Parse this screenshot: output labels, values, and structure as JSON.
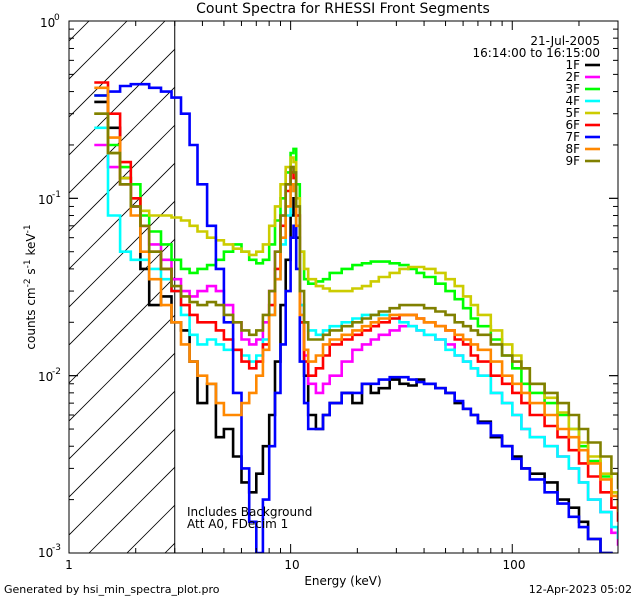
{
  "footer": {
    "generated_by": "Generated by hsi_min_spectra_plot.pro",
    "timestamp": "12-Apr-2023 05:02"
  },
  "chart_data": {
    "type": "line",
    "title": "Count Spectra for RHESSI Front Segments",
    "xlabel": "Energy (keV)",
    "ylabel_parts": [
      "counts cm",
      "-2",
      " s",
      "-1",
      " keV",
      "-1"
    ],
    "x_scale": "log",
    "y_scale": "log",
    "xlim": [
      1,
      300
    ],
    "ylim": [
      0.001,
      1
    ],
    "x_ticks": [
      {
        "value": 1,
        "label": "1"
      },
      {
        "value": 10,
        "label": "10"
      },
      {
        "value": 100,
        "label": "100"
      }
    ],
    "y_ticks": [
      {
        "value": 0.001,
        "base": "10",
        "exp": "-3"
      },
      {
        "value": 0.01,
        "base": "10",
        "exp": "-2"
      },
      {
        "value": 0.1,
        "base": "10",
        "exp": "-1"
      },
      {
        "value": 1,
        "base": "10",
        "exp": "0"
      }
    ],
    "date": "21-Jul-2005",
    "time_range": "16:14:00 to 16:15:00",
    "annotation_lines": [
      "Includes Background",
      "Att A0, FDecim 1"
    ],
    "hatched_region_max_keV": 3,
    "series": [
      {
        "name": "1F",
        "color": "#000000",
        "x": [
          1.3,
          1.5,
          1.7,
          1.9,
          2.1,
          2.3,
          2.6,
          2.9,
          3.2,
          3.5,
          3.8,
          4.2,
          4.6,
          5.0,
          5.5,
          6.0,
          6.5,
          7.0,
          7.5,
          8.0,
          8.5,
          9.0,
          9.5,
          10.0,
          10.3,
          10.6,
          11.0,
          11.5,
          12,
          13,
          14,
          15,
          17,
          19,
          21,
          23,
          25,
          28,
          31,
          34,
          37,
          40,
          45,
          50,
          55,
          60,
          65,
          70,
          80,
          90,
          100,
          110,
          120,
          140,
          160,
          180,
          200,
          220,
          250,
          280,
          300
        ],
        "y": [
          0.35,
          0.25,
          0.13,
          0.09,
          0.04,
          0.025,
          0.028,
          0.02,
          0.018,
          0.012,
          0.007,
          0.009,
          0.0045,
          0.005,
          0.0035,
          0.0025,
          0.0022,
          0.0028,
          0.004,
          0.006,
          0.012,
          0.025,
          0.045,
          0.08,
          0.1,
          0.06,
          0.02,
          0.01,
          0.006,
          0.005,
          0.006,
          0.007,
          0.008,
          0.007,
          0.009,
          0.008,
          0.0085,
          0.0095,
          0.009,
          0.0088,
          0.0095,
          0.009,
          0.0085,
          0.008,
          0.007,
          0.0065,
          0.006,
          0.0055,
          0.0045,
          0.004,
          0.0035,
          0.003,
          0.0028,
          0.0025,
          0.002,
          0.0018,
          0.0015,
          0.0012,
          0.001,
          0.0009,
          0.0008
        ]
      },
      {
        "name": "2F",
        "color": "#ff00ff",
        "x": [
          1.3,
          1.5,
          1.7,
          1.9,
          2.1,
          2.3,
          2.6,
          2.9,
          3.2,
          3.5,
          3.8,
          4.2,
          4.6,
          5.0,
          5.5,
          6.0,
          6.5,
          7.0,
          7.5,
          8.0,
          8.5,
          9.0,
          9.5,
          10.0,
          10.3,
          10.6,
          11.0,
          11.5,
          12,
          13,
          14,
          15,
          17,
          19,
          21,
          23,
          25,
          28,
          31,
          34,
          37,
          40,
          45,
          50,
          55,
          60,
          65,
          70,
          80,
          90,
          100,
          110,
          120,
          140,
          160,
          180,
          200,
          220,
          250,
          280,
          300
        ],
        "y": [
          0.2,
          0.15,
          0.12,
          0.09,
          0.07,
          0.055,
          0.045,
          0.035,
          0.03,
          0.028,
          0.03,
          0.032,
          0.03,
          0.025,
          0.02,
          0.016,
          0.015,
          0.016,
          0.02,
          0.03,
          0.05,
          0.08,
          0.12,
          0.15,
          0.14,
          0.08,
          0.025,
          0.013,
          0.009,
          0.008,
          0.009,
          0.01,
          0.012,
          0.014,
          0.015,
          0.016,
          0.017,
          0.018,
          0.019,
          0.019,
          0.018,
          0.017,
          0.016,
          0.015,
          0.013,
          0.012,
          0.011,
          0.01,
          0.008,
          0.007,
          0.006,
          0.005,
          0.0045,
          0.004,
          0.0035,
          0.003,
          0.0025,
          0.002,
          0.0017,
          0.0013,
          0.0011
        ]
      },
      {
        "name": "3F",
        "color": "#00ff00",
        "x": [
          1.3,
          1.5,
          1.7,
          1.9,
          2.1,
          2.3,
          2.6,
          2.9,
          3.2,
          3.5,
          3.8,
          4.2,
          4.6,
          5.0,
          5.5,
          6.0,
          6.5,
          7.0,
          7.5,
          8.0,
          8.5,
          9.0,
          9.5,
          10.0,
          10.3,
          10.6,
          11.0,
          11.5,
          12,
          13,
          14,
          15,
          17,
          19,
          21,
          23,
          25,
          28,
          31,
          34,
          37,
          40,
          45,
          50,
          55,
          60,
          65,
          70,
          80,
          90,
          100,
          110,
          120,
          140,
          160,
          180,
          200,
          220,
          250,
          280,
          300
        ],
        "y": [
          0.38,
          0.2,
          0.15,
          0.12,
          0.08,
          0.065,
          0.055,
          0.045,
          0.04,
          0.038,
          0.04,
          0.042,
          0.045,
          0.05,
          0.055,
          0.05,
          0.045,
          0.043,
          0.045,
          0.055,
          0.075,
          0.1,
          0.14,
          0.18,
          0.19,
          0.12,
          0.05,
          0.035,
          0.033,
          0.034,
          0.035,
          0.038,
          0.04,
          0.042,
          0.043,
          0.044,
          0.044,
          0.043,
          0.042,
          0.04,
          0.038,
          0.036,
          0.033,
          0.03,
          0.027,
          0.024,
          0.021,
          0.019,
          0.016,
          0.013,
          0.011,
          0.009,
          0.008,
          0.007,
          0.006,
          0.005,
          0.004,
          0.0033,
          0.0027,
          0.0022,
          0.0018
        ]
      },
      {
        "name": "4F",
        "color": "#00ffff",
        "x": [
          1.3,
          1.5,
          1.7,
          1.9,
          2.1,
          2.3,
          2.6,
          2.9,
          3.2,
          3.5,
          3.8,
          4.2,
          4.6,
          5.0,
          5.5,
          6.0,
          6.5,
          7.0,
          7.5,
          8.0,
          8.5,
          9.0,
          9.5,
          10.0,
          10.3,
          10.6,
          11.0,
          11.5,
          12,
          13,
          14,
          15,
          17,
          19,
          21,
          23,
          25,
          28,
          31,
          34,
          37,
          40,
          45,
          50,
          55,
          60,
          65,
          70,
          80,
          90,
          100,
          110,
          120,
          140,
          160,
          180,
          200,
          220,
          250,
          280,
          300
        ],
        "y": [
          0.25,
          0.08,
          0.05,
          0.045,
          0.045,
          0.04,
          0.035,
          0.03,
          0.022,
          0.017,
          0.015,
          0.016,
          0.015,
          0.014,
          0.014,
          0.013,
          0.012,
          0.013,
          0.016,
          0.022,
          0.035,
          0.055,
          0.08,
          0.11,
          0.12,
          0.07,
          0.025,
          0.02,
          0.018,
          0.017,
          0.018,
          0.019,
          0.02,
          0.021,
          0.022,
          0.022,
          0.022,
          0.021,
          0.02,
          0.019,
          0.018,
          0.017,
          0.016,
          0.014,
          0.013,
          0.012,
          0.011,
          0.01,
          0.008,
          0.007,
          0.006,
          0.005,
          0.0045,
          0.004,
          0.0035,
          0.003,
          0.0025,
          0.002,
          0.0017,
          0.0014,
          0.0012
        ]
      },
      {
        "name": "5F",
        "color": "#cccc00",
        "x": [
          1.3,
          1.5,
          1.7,
          1.9,
          2.1,
          2.3,
          2.6,
          2.9,
          3.2,
          3.5,
          3.8,
          4.2,
          4.6,
          5.0,
          5.5,
          6.0,
          6.5,
          7.0,
          7.5,
          8.0,
          8.5,
          9.0,
          9.5,
          10.0,
          10.3,
          10.6,
          11.0,
          11.5,
          12,
          13,
          14,
          15,
          17,
          19,
          21,
          23,
          25,
          28,
          31,
          34,
          37,
          40,
          45,
          50,
          55,
          60,
          65,
          70,
          80,
          90,
          100,
          110,
          120,
          140,
          160,
          180,
          200,
          220,
          250,
          280,
          300
        ],
        "y": [
          0.3,
          0.18,
          0.13,
          0.1,
          0.085,
          0.08,
          0.08,
          0.078,
          0.075,
          0.07,
          0.065,
          0.06,
          0.058,
          0.055,
          0.052,
          0.05,
          0.048,
          0.05,
          0.055,
          0.07,
          0.09,
          0.12,
          0.15,
          0.17,
          0.16,
          0.1,
          0.05,
          0.04,
          0.035,
          0.032,
          0.031,
          0.03,
          0.03,
          0.031,
          0.032,
          0.034,
          0.036,
          0.038,
          0.04,
          0.041,
          0.041,
          0.04,
          0.038,
          0.035,
          0.032,
          0.028,
          0.025,
          0.022,
          0.018,
          0.015,
          0.013,
          0.011,
          0.009,
          0.0075,
          0.0062,
          0.005,
          0.0042,
          0.0035,
          0.0028,
          0.0022,
          0.0018
        ]
      },
      {
        "name": "6F",
        "color": "#ff0000",
        "x": [
          1.3,
          1.5,
          1.7,
          1.9,
          2.1,
          2.3,
          2.6,
          2.9,
          3.2,
          3.5,
          3.8,
          4.2,
          4.6,
          5.0,
          5.5,
          6.0,
          6.5,
          7.0,
          7.5,
          8.0,
          8.5,
          9.0,
          9.5,
          10.0,
          10.3,
          10.6,
          11.0,
          11.5,
          12,
          13,
          14,
          15,
          17,
          19,
          21,
          23,
          25,
          28,
          31,
          34,
          37,
          40,
          45,
          50,
          55,
          60,
          65,
          70,
          80,
          90,
          100,
          110,
          120,
          140,
          160,
          180,
          200,
          220,
          250,
          280,
          300
        ],
        "y": [
          0.45,
          0.3,
          0.16,
          0.1,
          0.07,
          0.05,
          0.04,
          0.03,
          0.025,
          0.022,
          0.02,
          0.02,
          0.018,
          0.016,
          0.014,
          0.012,
          0.011,
          0.012,
          0.015,
          0.025,
          0.04,
          0.07,
          0.11,
          0.14,
          0.13,
          0.08,
          0.02,
          0.012,
          0.01,
          0.011,
          0.013,
          0.015,
          0.016,
          0.017,
          0.018,
          0.019,
          0.02,
          0.021,
          0.022,
          0.022,
          0.021,
          0.02,
          0.019,
          0.018,
          0.016,
          0.015,
          0.013,
          0.012,
          0.01,
          0.009,
          0.008,
          0.007,
          0.006,
          0.0052,
          0.0045,
          0.0038,
          0.0032,
          0.0027,
          0.0022,
          0.0018,
          0.0015
        ]
      },
      {
        "name": "7F",
        "color": "#0000ff",
        "x": [
          1.3,
          1.5,
          1.7,
          1.9,
          2.1,
          2.3,
          2.6,
          2.9,
          3.2,
          3.5,
          3.8,
          4.2,
          4.6,
          5.0,
          5.5,
          6.0,
          6.5,
          7.0,
          7.5,
          8.0,
          8.5,
          9.0,
          9.5,
          10.0,
          10.3,
          10.6,
          11.0,
          11.5,
          12,
          13,
          14,
          15,
          17,
          19,
          21,
          23,
          25,
          28,
          31,
          34,
          37,
          40,
          45,
          50,
          55,
          60,
          65,
          70,
          80,
          90,
          100,
          110,
          120,
          140,
          160,
          180,
          200,
          220,
          250,
          280,
          300
        ],
        "y": [
          0.38,
          0.4,
          0.43,
          0.44,
          0.44,
          0.42,
          0.4,
          0.37,
          0.3,
          0.2,
          0.12,
          0.07,
          0.04,
          0.02,
          0.008,
          0.003,
          0.0015,
          0.001,
          0.002,
          0.004,
          0.008,
          0.015,
          0.03,
          0.06,
          0.07,
          0.04,
          0.012,
          0.007,
          0.005,
          0.005,
          0.006,
          0.007,
          0.008,
          0.008,
          0.009,
          0.009,
          0.0095,
          0.0098,
          0.0098,
          0.0095,
          0.0092,
          0.009,
          0.0085,
          0.008,
          0.0072,
          0.0065,
          0.006,
          0.0054,
          0.0046,
          0.004,
          0.0034,
          0.003,
          0.0026,
          0.0022,
          0.0019,
          0.0016,
          0.0014,
          0.0012,
          0.001,
          0.0009,
          0.0008
        ]
      },
      {
        "name": "8F",
        "color": "#ff8800",
        "x": [
          1.3,
          1.5,
          1.7,
          1.9,
          2.1,
          2.3,
          2.6,
          2.9,
          3.2,
          3.5,
          3.8,
          4.2,
          4.6,
          5.0,
          5.5,
          6.0,
          6.5,
          7.0,
          7.5,
          8.0,
          8.5,
          9.0,
          9.5,
          10.0,
          10.3,
          10.6,
          11.0,
          11.5,
          12,
          13,
          14,
          15,
          17,
          19,
          21,
          23,
          25,
          28,
          31,
          34,
          37,
          40,
          45,
          50,
          55,
          60,
          65,
          70,
          80,
          90,
          100,
          110,
          120,
          140,
          160,
          180,
          200,
          220,
          250,
          280,
          300
        ],
        "y": [
          0.42,
          0.22,
          0.12,
          0.08,
          0.05,
          0.035,
          0.025,
          0.02,
          0.015,
          0.012,
          0.01,
          0.009,
          0.007,
          0.006,
          0.006,
          0.007,
          0.008,
          0.01,
          0.014,
          0.022,
          0.035,
          0.06,
          0.09,
          0.12,
          0.11,
          0.07,
          0.022,
          0.014,
          0.012,
          0.013,
          0.015,
          0.016,
          0.017,
          0.018,
          0.019,
          0.02,
          0.021,
          0.022,
          0.022,
          0.022,
          0.021,
          0.02,
          0.019,
          0.018,
          0.017,
          0.016,
          0.015,
          0.014,
          0.012,
          0.01,
          0.009,
          0.008,
          0.007,
          0.006,
          0.005,
          0.0045,
          0.0038,
          0.0032,
          0.0026,
          0.0021,
          0.0017
        ]
      },
      {
        "name": "9F",
        "color": "#808000",
        "x": [
          1.3,
          1.5,
          1.7,
          1.9,
          2.1,
          2.3,
          2.6,
          2.9,
          3.2,
          3.5,
          3.8,
          4.2,
          4.6,
          5.0,
          5.5,
          6.0,
          6.5,
          7.0,
          7.5,
          8.0,
          8.5,
          9.0,
          9.5,
          10.0,
          10.3,
          10.6,
          11.0,
          11.5,
          12,
          13,
          14,
          15,
          17,
          19,
          21,
          23,
          25,
          28,
          31,
          34,
          37,
          40,
          45,
          50,
          55,
          60,
          65,
          70,
          80,
          90,
          100,
          110,
          120,
          140,
          160,
          180,
          200,
          220,
          250,
          280,
          300
        ],
        "y": [
          0.3,
          0.18,
          0.12,
          0.09,
          0.07,
          0.05,
          0.04,
          0.032,
          0.028,
          0.026,
          0.025,
          0.026,
          0.025,
          0.022,
          0.02,
          0.018,
          0.017,
          0.018,
          0.022,
          0.03,
          0.05,
          0.08,
          0.12,
          0.15,
          0.14,
          0.09,
          0.03,
          0.02,
          0.016,
          0.016,
          0.017,
          0.018,
          0.019,
          0.02,
          0.021,
          0.022,
          0.023,
          0.024,
          0.025,
          0.025,
          0.025,
          0.024,
          0.023,
          0.022,
          0.02,
          0.019,
          0.018,
          0.017,
          0.015,
          0.013,
          0.012,
          0.011,
          0.009,
          0.008,
          0.007,
          0.006,
          0.005,
          0.0042,
          0.0035,
          0.0028,
          0.0023
        ]
      }
    ]
  }
}
